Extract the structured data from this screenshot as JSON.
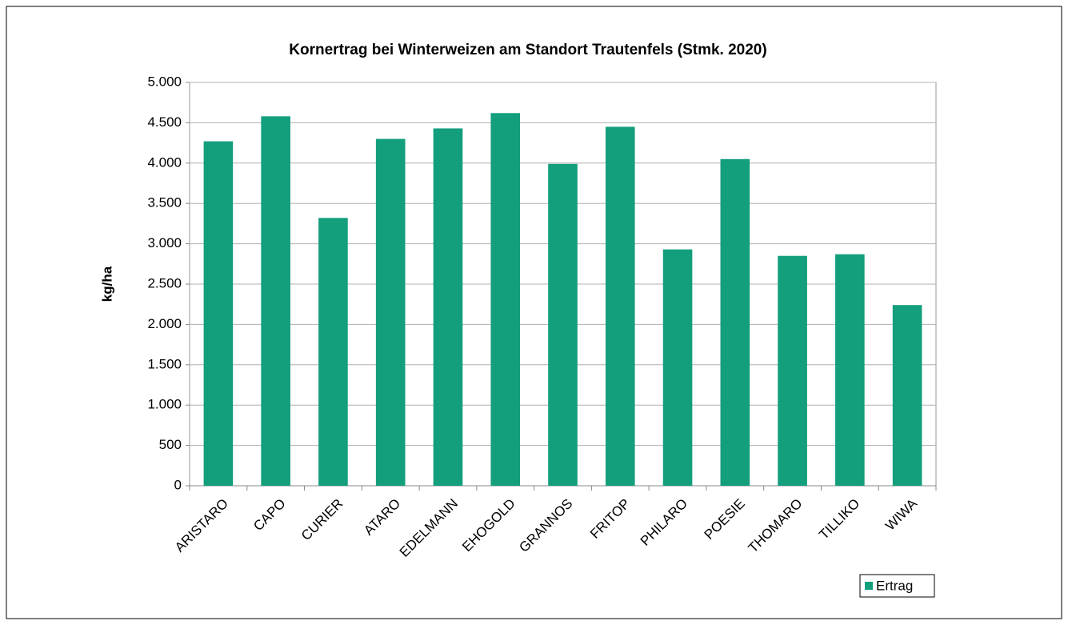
{
  "chart_data": {
    "type": "bar",
    "title": "Kornertrag bei Winterweizen am Standort Trautenfels (Stmk. 2020)",
    "y_label": "kg/ha",
    "categories": [
      "ARISTARO",
      "CAPO",
      "CURIER",
      "ATARO",
      "EDELMANN",
      "EHOGOLD",
      "GRANNOS",
      "FRITOP",
      "PHILARO",
      "POESIE",
      "THOMARO",
      "TILLIKO",
      "WIWA"
    ],
    "series": [
      {
        "name": "Ertrag",
        "color": "#139e7c",
        "values": [
          4270,
          4580,
          3320,
          4300,
          4430,
          4620,
          3990,
          4450,
          2930,
          4050,
          2850,
          2870,
          2240
        ]
      }
    ],
    "ylim": [
      0,
      5000
    ],
    "yticks": [
      0,
      500,
      {
        "value": 1000,
        "label": "1.000"
      },
      {
        "value": 1500,
        "label": "1.500"
      },
      {
        "value": 2000,
        "label": "2.000"
      },
      {
        "value": 2500,
        "label": "2.500"
      },
      {
        "value": 3000,
        "label": "3.000"
      },
      {
        "value": 3500,
        "label": "3.500"
      },
      {
        "value": 4000,
        "label": "4.000"
      },
      {
        "value": 4500,
        "label": "4.500"
      },
      {
        "value": 5000,
        "label": "5.000"
      }
    ],
    "grid": true,
    "legend": "bottom-right"
  }
}
